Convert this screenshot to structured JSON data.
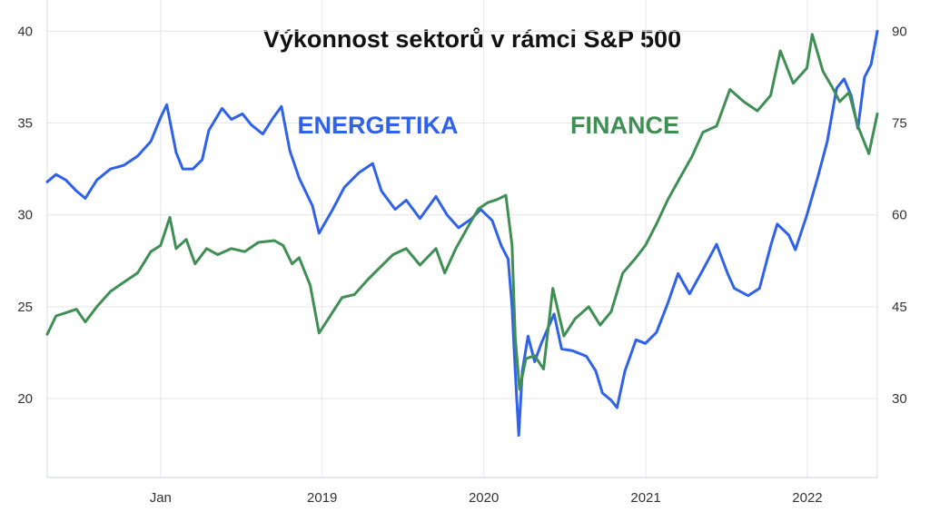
{
  "chart_data": {
    "type": "line",
    "title": "Výkonnost sektorů v rámci S&P 500",
    "x_tick_labels": [
      "Jan",
      "2019",
      "2020",
      "2021",
      "2022"
    ],
    "x_ticks": [
      "2018-01-01",
      "2019-01-01",
      "2020-01-01",
      "2021-01-01",
      "2022-01-01"
    ],
    "x_range": [
      "2017-04-20",
      "2022-06-08"
    ],
    "grid": true,
    "y_left": {
      "ticks": [
        20,
        25,
        30,
        35,
        40
      ],
      "range": [
        15.7,
        41.7
      ]
    },
    "y_right": {
      "ticks": [
        30,
        45,
        60,
        75,
        90
      ],
      "range": [
        17.1,
        95.1
      ]
    },
    "series": [
      {
        "name": "ENERGETIKA",
        "axis": "left",
        "color": "#2f62e8",
        "points": [
          [
            "2017-04-20",
            31.8
          ],
          [
            "2017-05-10",
            32.2
          ],
          [
            "2017-06-01",
            31.9
          ],
          [
            "2017-06-25",
            31.3
          ],
          [
            "2017-07-15",
            30.9
          ],
          [
            "2017-08-10",
            31.9
          ],
          [
            "2017-09-10",
            32.5
          ],
          [
            "2017-10-10",
            32.7
          ],
          [
            "2017-11-10",
            33.2
          ],
          [
            "2017-12-10",
            34.0
          ],
          [
            "2018-01-01",
            35.3
          ],
          [
            "2018-01-15",
            36.0
          ],
          [
            "2018-02-05",
            33.4
          ],
          [
            "2018-02-20",
            32.5
          ],
          [
            "2018-03-15",
            32.5
          ],
          [
            "2018-04-05",
            33.0
          ],
          [
            "2018-04-20",
            34.6
          ],
          [
            "2018-05-20",
            35.8
          ],
          [
            "2018-06-10",
            35.2
          ],
          [
            "2018-07-05",
            35.5
          ],
          [
            "2018-07-25",
            34.9
          ],
          [
            "2018-08-20",
            34.4
          ],
          [
            "2018-09-10",
            35.2
          ],
          [
            "2018-10-01",
            35.9
          ],
          [
            "2018-10-20",
            33.5
          ],
          [
            "2018-11-10",
            32.0
          ],
          [
            "2018-12-10",
            30.5
          ],
          [
            "2018-12-25",
            29.0
          ],
          [
            "2019-01-25",
            30.3
          ],
          [
            "2019-02-20",
            31.5
          ],
          [
            "2019-03-25",
            32.3
          ],
          [
            "2019-04-25",
            32.8
          ],
          [
            "2019-05-15",
            31.3
          ],
          [
            "2019-06-15",
            30.3
          ],
          [
            "2019-07-10",
            30.8
          ],
          [
            "2019-08-10",
            29.8
          ],
          [
            "2019-09-15",
            31.0
          ],
          [
            "2019-10-10",
            30.0
          ],
          [
            "2019-11-05",
            29.3
          ],
          [
            "2019-12-05",
            29.8
          ],
          [
            "2019-12-25",
            30.3
          ],
          [
            "2020-01-20",
            29.7
          ],
          [
            "2020-02-10",
            28.3
          ],
          [
            "2020-02-25",
            27.6
          ],
          [
            "2020-03-05",
            25.0
          ],
          [
            "2020-03-12",
            21.5
          ],
          [
            "2020-03-20",
            18.0
          ],
          [
            "2020-03-28",
            21.5
          ],
          [
            "2020-04-10",
            23.4
          ],
          [
            "2020-04-25",
            22.0
          ],
          [
            "2020-05-10",
            23.0
          ],
          [
            "2020-06-08",
            24.6
          ],
          [
            "2020-06-25",
            22.7
          ],
          [
            "2020-07-20",
            22.6
          ],
          [
            "2020-08-20",
            22.3
          ],
          [
            "2020-09-10",
            21.5
          ],
          [
            "2020-09-25",
            20.3
          ],
          [
            "2020-10-15",
            19.9
          ],
          [
            "2020-10-28",
            19.5
          ],
          [
            "2020-11-15",
            21.5
          ],
          [
            "2020-12-10",
            23.2
          ],
          [
            "2020-12-31",
            23.0
          ],
          [
            "2021-01-25",
            23.6
          ],
          [
            "2021-02-20",
            25.2
          ],
          [
            "2021-03-15",
            26.8
          ],
          [
            "2021-04-10",
            25.7
          ],
          [
            "2021-05-10",
            27.0
          ],
          [
            "2021-06-10",
            28.4
          ],
          [
            "2021-07-05",
            26.8
          ],
          [
            "2021-07-20",
            26.0
          ],
          [
            "2021-08-20",
            25.6
          ],
          [
            "2021-09-15",
            26.0
          ],
          [
            "2021-10-10",
            28.3
          ],
          [
            "2021-10-25",
            29.5
          ],
          [
            "2021-11-20",
            28.9
          ],
          [
            "2021-12-05",
            28.1
          ],
          [
            "2021-12-31",
            30.0
          ],
          [
            "2022-01-25",
            32.1
          ],
          [
            "2022-02-15",
            34.0
          ],
          [
            "2022-03-08",
            36.9
          ],
          [
            "2022-03-25",
            37.4
          ],
          [
            "2022-04-10",
            36.5
          ],
          [
            "2022-04-25",
            34.7
          ],
          [
            "2022-05-10",
            37.5
          ],
          [
            "2022-05-25",
            38.2
          ],
          [
            "2022-06-08",
            40.0
          ]
        ]
      },
      {
        "name": "FINANCE",
        "axis": "right",
        "color": "#3f8f55",
        "points": [
          [
            "2017-04-20",
            40.5
          ],
          [
            "2017-05-10",
            43.5
          ],
          [
            "2017-06-01",
            44.0
          ],
          [
            "2017-06-25",
            44.6
          ],
          [
            "2017-07-15",
            42.5
          ],
          [
            "2017-08-10",
            45.0
          ],
          [
            "2017-09-10",
            47.5
          ],
          [
            "2017-10-10",
            49.0
          ],
          [
            "2017-11-10",
            50.5
          ],
          [
            "2017-12-10",
            54.0
          ],
          [
            "2018-01-01",
            55.0
          ],
          [
            "2018-01-22",
            59.6
          ],
          [
            "2018-02-05",
            54.5
          ],
          [
            "2018-02-28",
            56.0
          ],
          [
            "2018-03-20",
            52.0
          ],
          [
            "2018-04-15",
            54.5
          ],
          [
            "2018-05-10",
            53.5
          ],
          [
            "2018-06-10",
            54.5
          ],
          [
            "2018-07-10",
            54.0
          ],
          [
            "2018-08-10",
            55.5
          ],
          [
            "2018-09-15",
            55.8
          ],
          [
            "2018-10-05",
            55.0
          ],
          [
            "2018-10-25",
            52.0
          ],
          [
            "2018-11-10",
            53.0
          ],
          [
            "2018-12-05",
            48.5
          ],
          [
            "2018-12-25",
            40.7
          ],
          [
            "2019-02-15",
            46.5
          ],
          [
            "2019-03-15",
            47.0
          ],
          [
            "2019-04-15",
            49.5
          ],
          [
            "2019-05-20",
            52.0
          ],
          [
            "2019-06-10",
            53.5
          ],
          [
            "2019-07-10",
            54.5
          ],
          [
            "2019-08-10",
            51.8
          ],
          [
            "2019-09-15",
            54.5
          ],
          [
            "2019-10-05",
            50.5
          ],
          [
            "2019-10-30",
            54.5
          ],
          [
            "2019-11-30",
            58.5
          ],
          [
            "2019-12-20",
            61.0
          ],
          [
            "2020-01-10",
            62.0
          ],
          [
            "2020-01-31",
            62.5
          ],
          [
            "2020-02-20",
            63.2
          ],
          [
            "2020-03-05",
            55.0
          ],
          [
            "2020-03-12",
            40.0
          ],
          [
            "2020-03-22",
            31.5
          ],
          [
            "2020-04-05",
            36.5
          ],
          [
            "2020-04-25",
            37.0
          ],
          [
            "2020-05-15",
            34.8
          ],
          [
            "2020-06-05",
            48.0
          ],
          [
            "2020-06-30",
            40.2
          ],
          [
            "2020-07-25",
            43.0
          ],
          [
            "2020-08-25",
            45.0
          ],
          [
            "2020-09-20",
            42.0
          ],
          [
            "2020-10-15",
            44.2
          ],
          [
            "2020-11-10",
            50.5
          ],
          [
            "2020-12-10",
            53.0
          ],
          [
            "2020-12-31",
            55.0
          ],
          [
            "2021-01-25",
            58.5
          ],
          [
            "2021-02-20",
            62.5
          ],
          [
            "2021-03-15",
            65.5
          ],
          [
            "2021-04-15",
            69.5
          ],
          [
            "2021-05-10",
            73.5
          ],
          [
            "2021-06-10",
            74.5
          ],
          [
            "2021-07-10",
            80.5
          ],
          [
            "2021-08-10",
            78.5
          ],
          [
            "2021-09-10",
            77.0
          ],
          [
            "2021-10-10",
            79.5
          ],
          [
            "2021-11-01",
            86.8
          ],
          [
            "2021-11-30",
            81.5
          ],
          [
            "2021-12-31",
            84.0
          ],
          [
            "2022-01-12",
            89.5
          ],
          [
            "2022-02-05",
            83.5
          ],
          [
            "2022-02-25",
            81.0
          ],
          [
            "2022-03-15",
            78.5
          ],
          [
            "2022-04-05",
            80.0
          ],
          [
            "2022-04-25",
            74.5
          ],
          [
            "2022-05-20",
            70.0
          ],
          [
            "2022-06-08",
            76.5
          ]
        ]
      }
    ]
  }
}
